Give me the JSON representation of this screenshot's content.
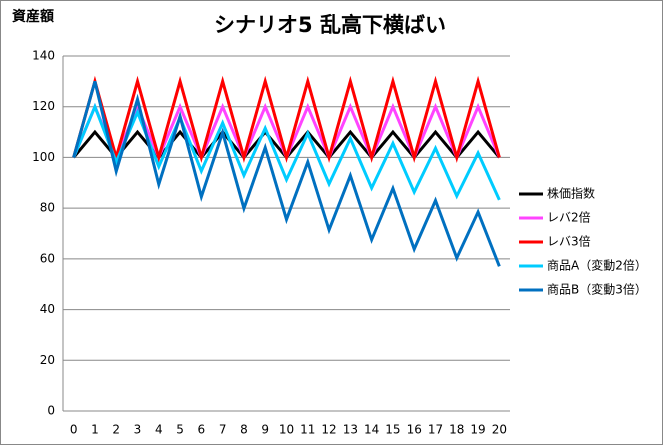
{
  "chart_data": {
    "type": "line",
    "title": "シナリオ5 乱高下横ばい",
    "y_label": "資産額",
    "categories": [
      "0",
      "1",
      "2",
      "3",
      "4",
      "5",
      "6",
      "7",
      "8",
      "9",
      "10",
      "11",
      "12",
      "13",
      "14",
      "15",
      "16",
      "17",
      "18",
      "19",
      "20"
    ],
    "series": [
      {
        "name": "株価指数",
        "color": "#000000",
        "values": [
          100,
          110,
          100,
          110,
          100,
          110,
          100,
          110,
          100,
          110,
          100,
          110,
          100,
          110,
          100,
          110,
          100,
          110,
          100,
          110,
          100
        ]
      },
      {
        "name": "レバ2倍",
        "color": "#ff44ff",
        "values": [
          100,
          120,
          100,
          120,
          100,
          120,
          100,
          120,
          100,
          120,
          100,
          120,
          100,
          120,
          100,
          120,
          100,
          120,
          100,
          120,
          100
        ]
      },
      {
        "name": "レバ3倍",
        "color": "#ff0000",
        "values": [
          100,
          130,
          100,
          130,
          100,
          130,
          100,
          130,
          100,
          130,
          100,
          130,
          100,
          130,
          100,
          130,
          100,
          130,
          100,
          130,
          100
        ]
      },
      {
        "name": "商品A（変動2倍）",
        "color": "#00ccff",
        "values": [
          100,
          120,
          98.18,
          117.82,
          96.4,
          115.68,
          94.64,
          113.58,
          92.92,
          111.51,
          91.23,
          109.48,
          89.57,
          107.49,
          87.95,
          105.54,
          86.35,
          103.62,
          84.78,
          101.73,
          83.24
        ]
      },
      {
        "name": "商品B（変動3倍）",
        "color": "#0070c0",
        "values": [
          100,
          130,
          94.55,
          122.91,
          89.39,
          116.2,
          84.51,
          109.86,
          79.9,
          103.87,
          75.54,
          98.21,
          71.42,
          92.85,
          67.53,
          87.79,
          63.84,
          83,
          60.36,
          78.47,
          57.07
        ]
      }
    ],
    "ylim": [
      0,
      140
    ],
    "yticks": [
      0,
      20,
      40,
      60,
      80,
      100,
      120,
      140
    ],
    "grid": true,
    "legend": "right"
  }
}
